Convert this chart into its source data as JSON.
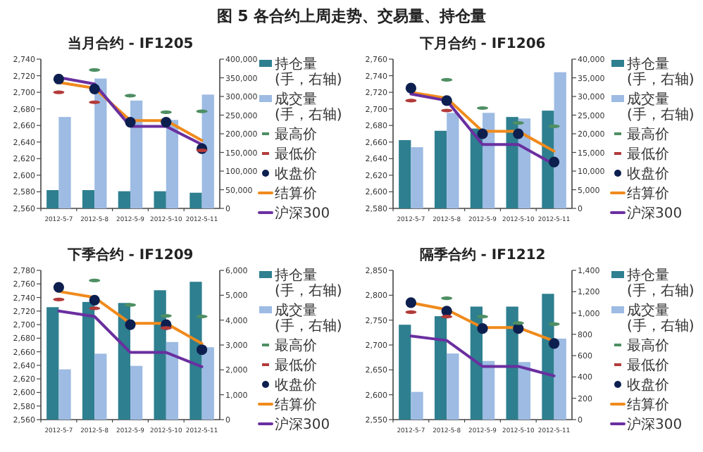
{
  "chart_data": [
    {
      "type": "other",
      "title": "图 5 各合约上周走势、交易量、持仓量"
    },
    {
      "type": "bar",
      "title": "当月合约 - IF1205",
      "categories": [
        "2012-5-7",
        "2012-5-8",
        "2012-5-9",
        "2012-5-10",
        "2012-5-11"
      ],
      "legend": "right",
      "ylim": [
        2560,
        2740
      ],
      "yticks": [
        {
          "value": 2560,
          "label": "2,560"
        },
        {
          "value": 2580,
          "label": "2,580"
        },
        {
          "value": 2600,
          "label": "2,600"
        },
        {
          "value": 2620,
          "label": "2,620"
        },
        {
          "value": 2640,
          "label": "2,640"
        },
        {
          "value": 2660,
          "label": "2,660"
        },
        {
          "value": 2680,
          "label": "2,680"
        },
        {
          "value": 2700,
          "label": "2,700"
        },
        {
          "value": 2720,
          "label": "2,720"
        },
        {
          "value": 2740,
          "label": "2,740"
        }
      ],
      "y2lim": [
        0,
        400000
      ],
      "y2ticks": [
        0,
        {
          "value": 50000,
          "label": "50,000"
        },
        {
          "value": 100000,
          "label": "100,000"
        },
        {
          "value": 150000,
          "label": "150,000"
        },
        {
          "value": 200000,
          "label": "200,000"
        },
        {
          "value": 250000,
          "label": "250,000"
        },
        {
          "value": 300000,
          "label": "300,000"
        },
        {
          "value": 350000,
          "label": "350,000"
        },
        {
          "value": 400000,
          "label": "400,000"
        }
      ],
      "series": [
        {
          "name": "持仓量\n(手，右轴)",
          "type": "bar",
          "axis": "y2",
          "color": "#2e7f8f",
          "values": [
            49000,
            49000,
            46000,
            46000,
            42000
          ]
        },
        {
          "name": "成交量\n(手，右轴)",
          "type": "bar",
          "axis": "y2",
          "color": "#9dbbe3",
          "values": [
            245000,
            348000,
            289000,
            237000,
            305000
          ]
        },
        {
          "name": "最高价",
          "type": "scatter",
          "color": "#4e8f63",
          "values": [
            null,
            2727,
            2696,
            2676,
            2677
          ]
        },
        {
          "name": "最低价",
          "type": "scatter",
          "color": "#b33a3a",
          "values": [
            2700,
            2688,
            null,
            null,
            2630
          ]
        },
        {
          "name": "收盘价",
          "type": "scatter",
          "marker": "circle",
          "color": "#0d1f4f",
          "values": [
            2716,
            2704,
            2664,
            2664,
            2632
          ]
        },
        {
          "name": "结算价",
          "type": "line",
          "color": "#f08a1c",
          "values": [
            2712,
            2705,
            2666,
            2666,
            2642
          ]
        },
        {
          "name": "沪深300",
          "type": "line",
          "color": "#6a2fa0",
          "values": [
            2718,
            2710,
            2659,
            2659,
            2637
          ]
        }
      ]
    },
    {
      "type": "bar",
      "title": "下月合约 - IF1206",
      "categories": [
        "2012-5-7",
        "2012-5-8",
        "2012-5-9",
        "2012-5-10",
        "2012-5-11"
      ],
      "legend": "right",
      "ylim": [
        2580,
        2760
      ],
      "yticks": [
        {
          "value": 2580,
          "label": "2,580"
        },
        {
          "value": 2600,
          "label": "2,600"
        },
        {
          "value": 2620,
          "label": "2,620"
        },
        {
          "value": 2640,
          "label": "2,640"
        },
        {
          "value": 2660,
          "label": "2,660"
        },
        {
          "value": 2680,
          "label": "2,680"
        },
        {
          "value": 2700,
          "label": "2,700"
        },
        {
          "value": 2720,
          "label": "2,720"
        },
        {
          "value": 2740,
          "label": "2,740"
        },
        {
          "value": 2760,
          "label": "2,760"
        }
      ],
      "y2lim": [
        0,
        40000
      ],
      "y2ticks": [
        0,
        {
          "value": 5000,
          "label": "5,000"
        },
        {
          "value": 10000,
          "label": "10,000"
        },
        {
          "value": 15000,
          "label": "15,000"
        },
        {
          "value": 20000,
          "label": "20,000"
        },
        {
          "value": 25000,
          "label": "25,000"
        },
        {
          "value": 30000,
          "label": "30,000"
        },
        {
          "value": 35000,
          "label": "35,000"
        },
        {
          "value": 40000,
          "label": "40,000"
        }
      ],
      "series": [
        {
          "name": "持仓量\n(手，右轴)",
          "type": "bar",
          "axis": "y2",
          "color": "#2e7f8f",
          "values": [
            18300,
            20800,
            21400,
            24500,
            26200
          ]
        },
        {
          "name": "成交量\n(手，右轴)",
          "type": "bar",
          "axis": "y2",
          "color": "#9dbbe3",
          "values": [
            16400,
            25600,
            25600,
            24100,
            36500
          ]
        },
        {
          "name": "最高价",
          "type": "scatter",
          "color": "#4e8f63",
          "values": [
            null,
            2735,
            2701,
            2683,
            2679
          ]
        },
        {
          "name": "最低价",
          "type": "scatter",
          "color": "#b33a3a",
          "values": [
            2710,
            2698,
            null,
            null,
            null
          ]
        },
        {
          "name": "收盘价",
          "type": "scatter",
          "marker": "circle",
          "color": "#0d1f4f",
          "values": [
            2725,
            2710,
            2670,
            2670,
            2636
          ]
        },
        {
          "name": "结算价",
          "type": "line",
          "color": "#f08a1c",
          "values": [
            2720,
            2713,
            2673,
            2673,
            2649
          ]
        },
        {
          "name": "沪深300",
          "type": "line",
          "color": "#6a2fa0",
          "values": [
            2718,
            2710,
            2657,
            2657,
            2633
          ]
        }
      ]
    },
    {
      "type": "bar",
      "title": "下季合约 - IF1209",
      "categories": [
        "2012-5-7",
        "2012-5-8",
        "2012-5-9",
        "2012-5-10",
        "2012-5-11"
      ],
      "legend": "right",
      "ylim": [
        2560,
        2780
      ],
      "yticks": [
        {
          "value": 2560,
          "label": "2,560"
        },
        {
          "value": 2580,
          "label": "2,580"
        },
        {
          "value": 2600,
          "label": "2,600"
        },
        {
          "value": 2620,
          "label": "2,620"
        },
        {
          "value": 2640,
          "label": "2,640"
        },
        {
          "value": 2660,
          "label": "2,660"
        },
        {
          "value": 2680,
          "label": "2,680"
        },
        {
          "value": 2700,
          "label": "2,700"
        },
        {
          "value": 2720,
          "label": "2,720"
        },
        {
          "value": 2740,
          "label": "2,740"
        },
        {
          "value": 2760,
          "label": "2,760"
        },
        {
          "value": 2780,
          "label": "2,780"
        }
      ],
      "y2lim": [
        0,
        6000
      ],
      "y2ticks": [
        0,
        {
          "value": 1000,
          "label": "1,000"
        },
        {
          "value": 2000,
          "label": "2,000"
        },
        {
          "value": 3000,
          "label": "3,000"
        },
        {
          "value": 4000,
          "label": "4,000"
        },
        {
          "value": 5000,
          "label": "5,000"
        },
        {
          "value": 6000,
          "label": "6,000"
        }
      ],
      "series": [
        {
          "name": "持仓量\n(手，右轴)",
          "type": "bar",
          "axis": "y2",
          "color": "#2e7f8f",
          "values": [
            4520,
            4730,
            4690,
            5200,
            5540
          ]
        },
        {
          "name": "成交量\n(手，右轴)",
          "type": "bar",
          "axis": "y2",
          "color": "#9dbbe3",
          "values": [
            2020,
            2650,
            2160,
            3120,
            2910
          ]
        },
        {
          "name": "最高价",
          "type": "scatter",
          "color": "#4e8f63",
          "values": [
            null,
            2765,
            2729,
            2713,
            2712
          ]
        },
        {
          "name": "最低价",
          "type": "scatter",
          "color": "#b33a3a",
          "values": [
            2737,
            2724,
            null,
            2695,
            null
          ]
        },
        {
          "name": "收盘价",
          "type": "scatter",
          "marker": "circle",
          "color": "#0d1f4f",
          "values": [
            2755,
            2736,
            2700,
            2700,
            2663
          ]
        },
        {
          "name": "结算价",
          "type": "line",
          "color": "#f08a1c",
          "values": [
            2749,
            2740,
            2702,
            2702,
            2672
          ]
        },
        {
          "name": "沪深300",
          "type": "line",
          "color": "#6a2fa0",
          "values": [
            2720,
            2712,
            2659,
            2659,
            2638
          ]
        }
      ]
    },
    {
      "type": "bar",
      "title": "隔季合约 - IF1212",
      "categories": [
        "2012-5-7",
        "2012-5-8",
        "2012-5-9",
        "2012-5-10",
        "2012-5-11"
      ],
      "legend": "right",
      "ylim": [
        2550,
        2850
      ],
      "yticks": [
        {
          "value": 2550,
          "label": "2,550"
        },
        {
          "value": 2600,
          "label": "2,600"
        },
        {
          "value": 2650,
          "label": "2,650"
        },
        {
          "value": 2700,
          "label": "2,700"
        },
        {
          "value": 2750,
          "label": "2,750"
        },
        {
          "value": 2800,
          "label": "2,800"
        },
        {
          "value": 2850,
          "label": "2,850"
        }
      ],
      "y2lim": [
        0,
        1400
      ],
      "y2ticks": [
        0,
        200,
        400,
        600,
        800,
        {
          "value": 1000,
          "label": "1,000"
        },
        {
          "value": 1200,
          "label": "1,200"
        },
        {
          "value": 1400,
          "label": "1,400"
        }
      ],
      "series": [
        {
          "name": "持仓量\n(手，右轴)",
          "type": "bar",
          "axis": "y2",
          "color": "#2e7f8f",
          "values": [
            890,
            970,
            1060,
            1060,
            1180
          ]
        },
        {
          "name": "成交量\n(手，右轴)",
          "type": "bar",
          "axis": "y2",
          "color": "#9dbbe3",
          "values": [
            260,
            620,
            550,
            540,
            760
          ]
        },
        {
          "name": "最高价",
          "type": "scatter",
          "color": "#4e8f63",
          "values": [
            null,
            2794,
            2757,
            2744,
            2742
          ]
        },
        {
          "name": "最低价",
          "type": "scatter",
          "color": "#b33a3a",
          "values": [
            2766,
            2757,
            null,
            null,
            null
          ]
        },
        {
          "name": "收盘价",
          "type": "scatter",
          "marker": "circle",
          "color": "#0d1f4f",
          "values": [
            2785,
            2768,
            2733,
            2733,
            2703
          ]
        },
        {
          "name": "结算价",
          "type": "line",
          "color": "#f08a1c",
          "values": [
            2785,
            2771,
            2735,
            2735,
            2708
          ]
        },
        {
          "name": "沪深300",
          "type": "line",
          "color": "#6a2fa0",
          "values": [
            2718,
            2709,
            2657,
            2657,
            2638
          ]
        }
      ]
    }
  ]
}
